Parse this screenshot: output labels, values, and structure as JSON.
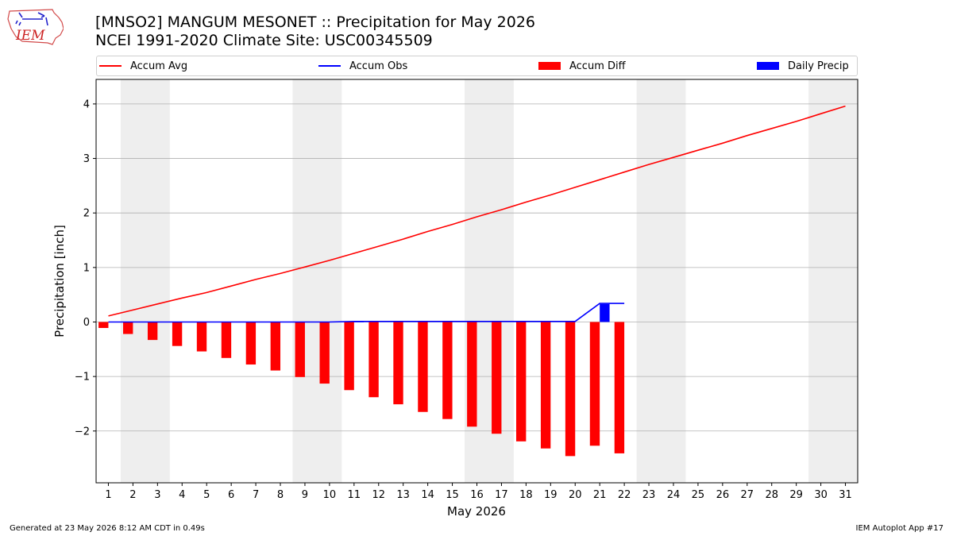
{
  "header": {
    "logo_text": "IEM",
    "title_line1": "[MNSO2] MANGUM MESONET :: Precipitation for May 2026",
    "title_line2": "NCEI 1991-2020 Climate Site: USC00345509"
  },
  "footer": {
    "generated": "Generated at 23 May 2026 8:12 AM CDT in 0.49s",
    "app": "IEM Autoplot App #17"
  },
  "colors": {
    "accum_avg": "#ff0000",
    "accum_obs": "#0000ff",
    "accum_diff": "#ff0000",
    "daily_precip": "#0000ff",
    "weekend_shade": "#eeeeee",
    "grid": "#b0b0b0"
  },
  "chart_data": {
    "type": "bar",
    "title": "[MNSO2] MANGUM MESONET :: Precipitation for May 2026",
    "subtitle": "NCEI 1991-2020 Climate Site: USC00345509",
    "xlabel": "May 2026",
    "ylabel": "Precipitation [inch]",
    "x": [
      1,
      2,
      3,
      4,
      5,
      6,
      7,
      8,
      9,
      10,
      11,
      12,
      13,
      14,
      15,
      16,
      17,
      18,
      19,
      20,
      21,
      22,
      23,
      24,
      25,
      26,
      27,
      28,
      29,
      30,
      31
    ],
    "xlim": [
      0.5,
      31.5
    ],
    "ylim": [
      -2.95,
      4.45
    ],
    "yticks": [
      -2,
      -1,
      0,
      1,
      2,
      3,
      4
    ],
    "ytick_labels": [
      "−2",
      "−1",
      "0",
      "1",
      "2",
      "3",
      "4"
    ],
    "grid": "horizontal",
    "legend_placement": "top",
    "weekend_shading": [
      [
        1.5,
        3.5
      ],
      [
        8.5,
        10.5
      ],
      [
        15.5,
        17.5
      ],
      [
        22.5,
        24.5
      ],
      [
        29.5,
        31.5
      ]
    ],
    "series": [
      {
        "name": "Accum Avg",
        "kind": "line",
        "x": [
          1,
          2,
          3,
          4,
          5,
          6,
          7,
          8,
          9,
          10,
          11,
          12,
          13,
          14,
          15,
          16,
          17,
          18,
          19,
          20,
          21,
          22,
          23,
          24,
          25,
          26,
          27,
          28,
          29,
          30,
          31
        ],
        "values": [
          0.11,
          0.22,
          0.33,
          0.44,
          0.54,
          0.66,
          0.78,
          0.89,
          1.01,
          1.13,
          1.26,
          1.39,
          1.52,
          1.66,
          1.79,
          1.93,
          2.06,
          2.2,
          2.33,
          2.47,
          2.61,
          2.75,
          2.89,
          3.02,
          3.15,
          3.28,
          3.42,
          3.55,
          3.68,
          3.82,
          3.96
        ]
      },
      {
        "name": "Accum Obs",
        "kind": "line",
        "x": [
          1,
          2,
          3,
          4,
          5,
          6,
          7,
          8,
          9,
          10,
          11,
          12,
          13,
          14,
          15,
          16,
          17,
          18,
          19,
          20,
          21,
          22
        ],
        "values": [
          0.0,
          0.0,
          0.0,
          0.0,
          0.0,
          0.0,
          0.0,
          0.0,
          0.0,
          0.0,
          0.01,
          0.01,
          0.01,
          0.01,
          0.01,
          0.01,
          0.01,
          0.01,
          0.01,
          0.01,
          0.34,
          0.34
        ]
      },
      {
        "name": "Accum Diff",
        "kind": "bar",
        "x": [
          1,
          2,
          3,
          4,
          5,
          6,
          7,
          8,
          9,
          10,
          11,
          12,
          13,
          14,
          15,
          16,
          17,
          18,
          19,
          20,
          21,
          22
        ],
        "values": [
          -0.11,
          -0.22,
          -0.33,
          -0.44,
          -0.54,
          -0.66,
          -0.78,
          -0.89,
          -1.01,
          -1.13,
          -1.25,
          -1.38,
          -1.51,
          -1.65,
          -1.78,
          -1.92,
          -2.05,
          -2.19,
          -2.32,
          -2.46,
          -2.27,
          -2.41
        ]
      },
      {
        "name": "Daily Precip",
        "kind": "bar",
        "x": [
          1,
          2,
          3,
          4,
          5,
          6,
          7,
          8,
          9,
          10,
          11,
          12,
          13,
          14,
          15,
          16,
          17,
          18,
          19,
          20,
          21,
          22
        ],
        "values": [
          0,
          0,
          0,
          0,
          0,
          0,
          0,
          0,
          0,
          0,
          0.01,
          0,
          0,
          0,
          0,
          0,
          0,
          0,
          0,
          0,
          0.33,
          0
        ]
      }
    ]
  }
}
